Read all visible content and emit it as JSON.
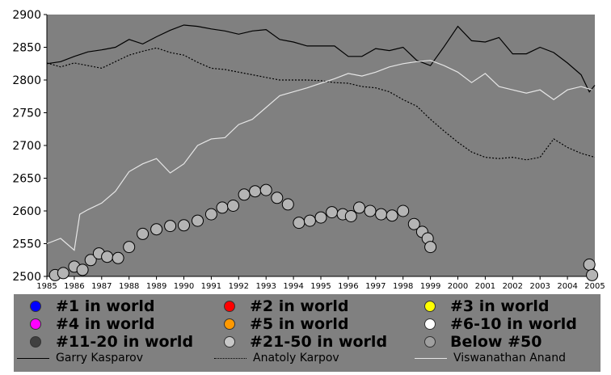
{
  "chart_data": {
    "type": "line",
    "title": "",
    "xlabel": "",
    "ylabel": "",
    "xlim": [
      1985,
      2005
    ],
    "ylim": [
      2500,
      2900
    ],
    "y_ticks": [
      2500,
      2550,
      2600,
      2650,
      2700,
      2750,
      2800,
      2850,
      2900
    ],
    "x_ticks": [
      "1985",
      "1986",
      "1987",
      "1988",
      "1989",
      "1990",
      "1991",
      "1992",
      "1993",
      "1994",
      "1995",
      "1996",
      "1997",
      "1998",
      "1999",
      "2000",
      "2001",
      "2002",
      "2003",
      "2004",
      "2005"
    ],
    "grid": false,
    "colors": {
      "background": "#808080",
      "kasparov": "#000000",
      "karpov": "#000000",
      "anand": "#e6e6e6",
      "rank_marker": "#b4b4b4"
    },
    "series": [
      {
        "name": "Garry Kasparov",
        "style": "solid",
        "x": [
          1985.0,
          1985.5,
          1986.0,
          1986.5,
          1987.0,
          1987.5,
          1988.0,
          1988.5,
          1989.0,
          1989.5,
          1990.0,
          1990.5,
          1991.0,
          1991.5,
          1992.0,
          1992.5,
          1993.0,
          1993.5,
          1994.0,
          1994.5,
          1995.0,
          1995.5,
          1996.0,
          1996.5,
          1997.0,
          1997.5,
          1998.0,
          1998.5,
          1999.0,
          1999.5,
          2000.0,
          2000.5,
          2001.0,
          2001.5,
          2002.0,
          2002.5,
          2003.0,
          2003.5,
          2004.0,
          2004.5,
          2004.8,
          2005.0
        ],
        "values": [
          2825,
          2828,
          2836,
          2843,
          2846,
          2850,
          2862,
          2855,
          2866,
          2876,
          2884,
          2882,
          2878,
          2875,
          2870,
          2875,
          2877,
          2862,
          2858,
          2852,
          2852,
          2852,
          2836,
          2836,
          2848,
          2845,
          2850,
          2830,
          2822,
          2851,
          2882,
          2860,
          2858,
          2865,
          2840,
          2840,
          2850,
          2842,
          2826,
          2808,
          2782,
          2792
        ]
      },
      {
        "name": "Anatoly Karpov",
        "style": "dotted",
        "x": [
          1985.0,
          1985.5,
          1986.0,
          1986.5,
          1987.0,
          1987.5,
          1988.0,
          1988.5,
          1989.0,
          1989.5,
          1990.0,
          1990.5,
          1991.0,
          1991.5,
          1992.0,
          1992.5,
          1993.0,
          1993.5,
          1994.0,
          1994.5,
          1995.0,
          1995.5,
          1996.0,
          1996.5,
          1997.0,
          1997.5,
          1998.0,
          1998.5,
          1999.0,
          1999.5,
          2000.0,
          2000.5,
          2001.0,
          2001.5,
          2002.0,
          2002.5,
          2003.0,
          2003.5,
          2004.0,
          2004.5,
          2005.0
        ],
        "values": [
          2826,
          2820,
          2826,
          2822,
          2818,
          2828,
          2838,
          2844,
          2849,
          2842,
          2838,
          2827,
          2818,
          2816,
          2812,
          2808,
          2804,
          2800,
          2800,
          2800,
          2799,
          2796,
          2795,
          2790,
          2788,
          2782,
          2770,
          2760,
          2740,
          2722,
          2705,
          2690,
          2682,
          2680,
          2682,
          2678,
          2682,
          2710,
          2697,
          2688,
          2682
        ]
      },
      {
        "name": "Viswanathan Anand",
        "style": "solid",
        "x": [
          1985.0,
          1985.5,
          1986.0,
          1986.2,
          1986.5,
          1987.0,
          1987.5,
          1988.0,
          1988.5,
          1989.0,
          1989.5,
          1990.0,
          1990.5,
          1991.0,
          1991.5,
          1992.0,
          1992.5,
          1993.0,
          1993.5,
          1994.0,
          1994.5,
          1995.0,
          1995.5,
          1996.0,
          1996.5,
          1997.0,
          1997.5,
          1998.0,
          1998.5,
          1999.0,
          1999.5,
          2000.0,
          2000.5,
          2001.0,
          2001.5,
          2002.0,
          2002.5,
          2003.0,
          2003.5,
          2004.0,
          2004.5,
          2004.9
        ],
        "values": [
          2550,
          2558,
          2540,
          2595,
          2602,
          2612,
          2630,
          2660,
          2672,
          2680,
          2658,
          2672,
          2700,
          2710,
          2712,
          2732,
          2740,
          2758,
          2776,
          2782,
          2788,
          2795,
          2802,
          2810,
          2806,
          2812,
          2820,
          2825,
          2828,
          2830,
          2822,
          2812,
          2796,
          2810,
          2790,
          2785,
          2780,
          2785,
          2770,
          2785,
          2790,
          2785
        ]
      }
    ],
    "rank_markers": [
      {
        "name": "#21-50 in world",
        "x": [
          1985.3,
          1985.6,
          1986.0,
          1986.3,
          1986.6,
          1986.9,
          1987.2,
          1987.6,
          1988.0,
          1988.5,
          1989.0,
          1989.5,
          1990.0,
          1990.5,
          1991.0,
          1991.4,
          1991.8,
          1992.2,
          1992.6,
          1993.0,
          1993.4,
          1993.8,
          1994.2,
          1994.6,
          1995.0,
          1995.4,
          1995.8,
          1996.1,
          1996.4,
          1996.8,
          1997.2,
          1997.6,
          1998.0,
          1998.4,
          1998.7,
          1998.9,
          1999.0
        ],
        "values": [
          2502,
          2505,
          2515,
          2510,
          2525,
          2535,
          2530,
          2528,
          2545,
          2565,
          2572,
          2577,
          2578,
          2585,
          2595,
          2605,
          2608,
          2625,
          2630,
          2632,
          2620,
          2610,
          2582,
          2585,
          2590,
          2598,
          2595,
          2592,
          2605,
          2600,
          2595,
          2593,
          2600,
          2580,
          2568,
          2558,
          2545
        ]
      },
      {
        "name": "Below #50",
        "x": [
          2004.8,
          2004.9
        ],
        "values": [
          2518,
          2502
        ]
      }
    ],
    "legend": [
      {
        "label": "#1 in world",
        "color": "#0000ff"
      },
      {
        "label": "#2 in world",
        "color": "#ff0000"
      },
      {
        "label": "#3 in world",
        "color": "#ffff00"
      },
      {
        "label": "#4 in world",
        "color": "#ff00ff"
      },
      {
        "label": "#5 in world",
        "color": "#ff9900"
      },
      {
        "label": "#6-10 in world",
        "color": "#ffffff"
      },
      {
        "label": "#11-20 in world",
        "color": "#404040"
      },
      {
        "label": "#21-50 in world",
        "color": "#c8c8c8"
      },
      {
        "label": "Below #50",
        "color": "#a0a0a0"
      }
    ],
    "line_legend": [
      {
        "label": "Garry Kasparov",
        "style": "solid",
        "color": "#000000"
      },
      {
        "label": "Anatoly Karpov",
        "style": "dotted",
        "color": "#000000"
      },
      {
        "label": "Viswanathan Anand",
        "style": "solid",
        "color": "#e6e6e6"
      }
    ]
  }
}
